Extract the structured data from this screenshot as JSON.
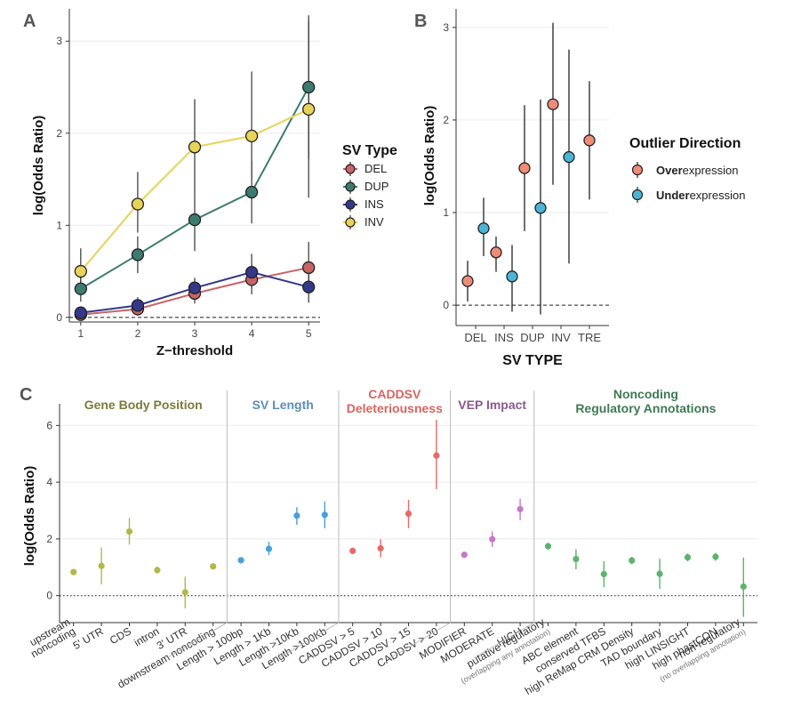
{
  "chart_data": [
    {
      "panel": "A",
      "type": "line",
      "xlabel": "Z−threshold",
      "ylabel": "log(Odds Ratio)",
      "xticks": [
        1,
        2,
        3,
        4,
        5
      ],
      "yticks": [
        0,
        1,
        2,
        3
      ],
      "xlim": [
        0.8,
        5.2
      ],
      "ylim": [
        -0.05,
        3.35
      ],
      "reference_line": 0,
      "legend_title": "SV Type",
      "legend_position": "right",
      "series": [
        {
          "name": "DEL",
          "color": "#c86464",
          "x": [
            1,
            2,
            3,
            4,
            5
          ],
          "y": [
            0.03,
            0.09,
            0.26,
            0.41,
            0.54
          ],
          "lo": [
            0.0,
            0.02,
            0.15,
            0.25,
            0.3
          ],
          "hi": [
            0.08,
            0.18,
            0.38,
            0.58,
            0.82
          ]
        },
        {
          "name": "DUP",
          "color": "#3d7b70",
          "x": [
            1,
            2,
            3,
            4,
            5
          ],
          "y": [
            0.31,
            0.68,
            1.06,
            1.36,
            2.5
          ],
          "lo": [
            0.17,
            0.48,
            0.72,
            1.02,
            1.72
          ],
          "hi": [
            0.48,
            0.88,
            1.36,
            1.7,
            3.28
          ]
        },
        {
          "name": "INS",
          "color": "#34388a",
          "x": [
            1,
            2,
            3,
            4,
            5
          ],
          "y": [
            0.05,
            0.13,
            0.32,
            0.49,
            0.33
          ],
          "lo": [
            0.01,
            0.06,
            0.22,
            0.32,
            0.16
          ],
          "hi": [
            0.12,
            0.22,
            0.43,
            0.69,
            0.56
          ]
        },
        {
          "name": "INV",
          "color": "#e8d35a",
          "x": [
            1,
            2,
            3,
            4,
            5
          ],
          "y": [
            0.5,
            1.23,
            1.85,
            1.97,
            2.26
          ],
          "lo": [
            0.26,
            0.92,
            1.36,
            1.5,
            1.3
          ],
          "hi": [
            0.75,
            1.58,
            2.37,
            2.67,
            3.22
          ]
        }
      ]
    },
    {
      "panel": "B",
      "type": "scatter",
      "xlabel": "SV TYPE",
      "ylabel": "log(Odds Ratio)",
      "categories": [
        "DEL",
        "INS",
        "DUP",
        "INV",
        "TRE"
      ],
      "yticks": [
        0,
        1,
        2,
        3
      ],
      "ylim": [
        -0.22,
        3.2
      ],
      "reference_line": 0,
      "legend_title": "Outlier Direction",
      "legend_position": "right",
      "legend_entries": [
        {
          "bold": "Over",
          "rest": "expression",
          "color": "#ef8c78"
        },
        {
          "bold": "Under",
          "rest": "expression",
          "color": "#4cb4d6"
        }
      ],
      "series": [
        {
          "name": "Overexpression",
          "color": "#ef8c78",
          "y": [
            0.26,
            0.57,
            1.48,
            2.17,
            1.78
          ],
          "lo": [
            0.04,
            0.36,
            0.8,
            1.3,
            1.14
          ],
          "hi": [
            0.48,
            0.74,
            2.16,
            3.05,
            2.42
          ]
        },
        {
          "name": "Underexpression",
          "color": "#4cb4d6",
          "y": [
            0.83,
            0.31,
            1.05,
            1.6,
            null
          ],
          "lo": [
            0.53,
            -0.07,
            -0.1,
            0.45,
            null
          ],
          "hi": [
            1.16,
            0.65,
            2.22,
            2.76,
            null
          ]
        }
      ]
    },
    {
      "panel": "C",
      "type": "scatter",
      "ylabel": "log(Odds Ratio)",
      "yticks": [
        0,
        2,
        4,
        6
      ],
      "ylim": [
        -0.95,
        6.45
      ],
      "reference_line": 0,
      "groups": [
        {
          "title": [
            "Gene Body Position"
          ],
          "color": "#7b7b3a",
          "point_color": "#b3b848",
          "labels": [
            "upstream\nnoncoding",
            "5' UTR",
            "CDS",
            "intron",
            "3' UTR",
            "downstream noncoding"
          ],
          "y": [
            0.83,
            1.05,
            2.26,
            0.9,
            0.12,
            1.03
          ],
          "lo": [
            0.73,
            0.4,
            1.8,
            0.78,
            -0.45,
            0.92
          ],
          "hi": [
            0.94,
            1.7,
            2.74,
            1.02,
            0.67,
            1.15
          ]
        },
        {
          "title": [
            "SV Length"
          ],
          "color": "#5a8fba",
          "point_color": "#4aa0d9",
          "labels": [
            "Length > 100bp",
            "Length > 1Kb",
            "Length >10Kb",
            "Length >100Kb"
          ],
          "y": [
            1.25,
            1.65,
            2.82,
            2.85
          ],
          "lo": [
            1.17,
            1.43,
            2.5,
            2.38
          ],
          "hi": [
            1.33,
            1.9,
            3.12,
            3.32
          ]
        },
        {
          "title": [
            "CADDSV",
            "Deleteriousness"
          ],
          "color": "#d9645e",
          "point_color": "#e56b6b",
          "labels": [
            "CADDSV > 5",
            "CADDSV > 10",
            "CADDSV > 15",
            "CADDSV > 20"
          ],
          "y": [
            1.58,
            1.67,
            2.89,
            4.94
          ],
          "lo": [
            1.47,
            1.35,
            2.38,
            3.75
          ],
          "hi": [
            1.69,
            1.99,
            3.38,
            6.2
          ]
        },
        {
          "title": [
            "VEP Impact"
          ],
          "color": "#8a5a8e",
          "point_color": "#c57ac6",
          "labels": [
            "MODIFIER",
            "MODERATE",
            "HIGH"
          ],
          "y": [
            1.44,
            1.99,
            3.05
          ],
          "lo": [
            1.36,
            1.72,
            2.66
          ],
          "hi": [
            1.52,
            2.26,
            3.42
          ]
        },
        {
          "title": [
            "Noncoding",
            "Regulatory Annotations"
          ],
          "color": "#3f7a53",
          "point_color": "#5cb46c",
          "labels": [
            "putative regulatory\n(overlapping any annotation)",
            "ABC element",
            "conserved TFBS",
            "high ReMap CRM Density",
            "TAD boundary",
            "high LINSIGHT",
            "high phastCON",
            "non-regulatory\n(no overlapping annotation)"
          ],
          "y": [
            1.74,
            1.29,
            0.76,
            1.24,
            0.77,
            1.35,
            1.37,
            0.32
          ],
          "lo": [
            1.62,
            0.93,
            0.3,
            1.11,
            0.24,
            1.21,
            1.23,
            -0.75
          ],
          "hi": [
            1.87,
            1.64,
            1.22,
            1.37,
            1.3,
            1.49,
            1.51,
            1.34
          ]
        }
      ]
    }
  ],
  "panel_labels": [
    "A",
    "B",
    "C"
  ]
}
